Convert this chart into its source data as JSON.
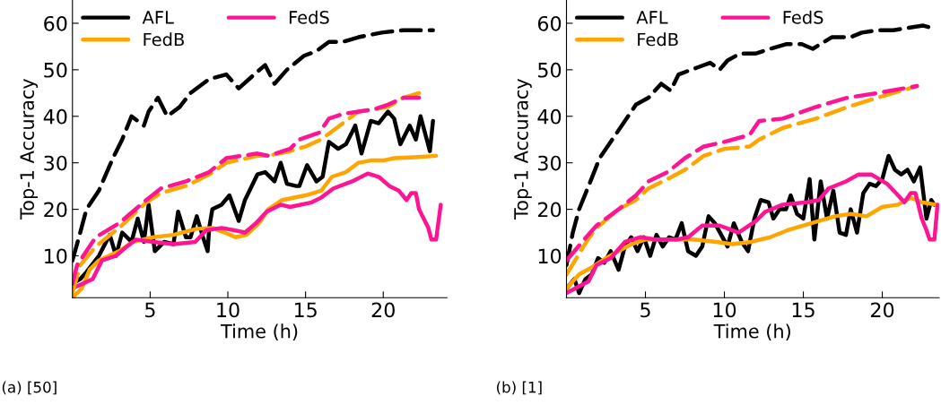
{
  "chart_data": [
    {
      "type": "line",
      "xlabel": "Time (h)",
      "ylabel": "Top-1 Accuracy",
      "xlim": [
        0,
        24.1
      ],
      "ylim": [
        1,
        65
      ],
      "xticks": [
        5,
        10,
        15,
        20
      ],
      "yticks": [
        10,
        20,
        30,
        40,
        50,
        60
      ],
      "grid": false,
      "legend": "top left",
      "marker": "none",
      "annotations": [
        "(a) [50]"
      ],
      "series": [
        {
          "name": "AFL",
          "color": "#000000",
          "line_style": "solid",
          "x": [
            0,
            0.5,
            0.9,
            1.7,
            2.4,
            2.8,
            3.2,
            3.8,
            4.2,
            4.6,
            4.9,
            5.3,
            5.9,
            6.5,
            6.8,
            7.3,
            7.6,
            8.0,
            8.4,
            8.7,
            8.8,
            9.0,
            9.6,
            10.1,
            10.7,
            11.1,
            11.9,
            12.4,
            13.0,
            13.4,
            13.8,
            14.4,
            14.6,
            15.1,
            15.7,
            16.1,
            16.5,
            17.1,
            17.6,
            18.2,
            18.6,
            19.2,
            19.7,
            20.3,
            20.7,
            21.1,
            21.7,
            22.1,
            22.4,
            22.8,
            23.0,
            23.2
          ],
          "values": [
            4,
            5,
            6.5,
            10,
            14.5,
            10,
            15,
            13,
            18,
            13,
            21,
            11,
            13,
            12.5,
            19.5,
            14,
            14,
            18.5,
            14,
            11,
            16,
            20,
            21,
            23,
            17.5,
            22,
            27.5,
            28,
            26,
            30,
            25.5,
            25,
            25,
            29.5,
            26,
            27,
            34.5,
            33,
            34,
            38,
            32,
            39,
            38.5,
            41,
            39.5,
            34,
            38,
            35,
            40,
            35,
            32.5,
            39
          ]
        },
        {
          "name": "FedB",
          "color": "#ffa500",
          "line_style": "solid",
          "x": [
            0,
            0.6,
            1.1,
            1.7,
            3.0,
            3.9,
            5.2,
            6.5,
            8.0,
            9.0,
            9.8,
            10.5,
            11.2,
            12.0,
            12.6,
            13.5,
            15.0,
            16.0,
            16.7,
            17.6,
            18.4,
            19.2,
            20.0,
            20.7,
            22.0,
            23.4
          ],
          "values": [
            1,
            3,
            7,
            9,
            11,
            13,
            14,
            14.5,
            15.8,
            16,
            15,
            14,
            14.5,
            17,
            20,
            22,
            23,
            24,
            27,
            28,
            30,
            30.5,
            30.5,
            31,
            31.2,
            31.5
          ]
        },
        {
          "name": "FedS",
          "color": "#ff1493",
          "line_style": "solid",
          "x": [
            0,
            1.3,
            1.9,
            2.8,
            3.5,
            4.1,
            5.2,
            6.5,
            7.9,
            8.6,
            9.6,
            10.4,
            11.1,
            11.8,
            12.5,
            13.4,
            14.0,
            15.4,
            16.0,
            16.8,
            18.0,
            19.0,
            19.7,
            20.4,
            21.0,
            21.5,
            21.8,
            22.1,
            22.3,
            22.9,
            23.1,
            23.4,
            23.7
          ],
          "values": [
            3,
            5,
            9,
            10,
            12,
            13.5,
            13,
            12.5,
            13,
            15.5,
            16,
            15.5,
            15,
            17,
            19.5,
            21,
            20.5,
            21.5,
            22.5,
            24.5,
            26,
            27.7,
            27,
            25,
            24,
            22,
            23.5,
            23.5,
            20,
            16,
            13.5,
            13.5,
            21
          ]
        },
        {
          "color": "#000000",
          "line_style": "dashed",
          "x": [
            0,
            0.5,
            0.9,
            1.7,
            2.6,
            3.2,
            3.8,
            4.6,
            4.9,
            5.5,
            6.1,
            6.9,
            7.6,
            8.8,
            9.9,
            10.7,
            11.7,
            12.4,
            13.0,
            13.8,
            14.9,
            15.7,
            16.5,
            17.4,
            18.4,
            19.9,
            21.3,
            22.6,
            23.2
          ],
          "values": [
            9,
            15,
            20,
            24,
            31,
            35,
            40,
            38,
            41,
            44,
            40,
            42,
            45,
            48,
            49,
            46,
            49,
            51,
            47,
            50,
            53,
            54,
            56,
            56,
            57,
            58,
            58.5,
            58.5,
            58.5
          ]
        },
        {
          "color": "#ffa500",
          "line_style": "dashed",
          "x": [
            0,
            0.5,
            1.5,
            3.0,
            4.75,
            5.7,
            7.3,
            8.8,
            9.9,
            11.9,
            12.6,
            14.0,
            15.0,
            16.0,
            17.4,
            18.4,
            20.3,
            21.3,
            22.3
          ],
          "values": [
            2,
            8,
            12,
            16,
            21.5,
            23.5,
            25,
            27.5,
            30,
            31.5,
            31.5,
            32.5,
            33.5,
            35,
            38.5,
            41,
            42,
            44,
            45
          ]
        },
        {
          "color": "#ff1493",
          "line_style": "dashed",
          "x": [
            0,
            0.3,
            1.5,
            3.0,
            4.75,
            5.7,
            7.3,
            8.8,
            9.9,
            11.9,
            12.6,
            14.0,
            14.6,
            15.9,
            16.5,
            17.4,
            19.4,
            20.3,
            21.3,
            22.3
          ],
          "values": [
            4,
            8,
            14,
            17,
            22,
            24.5,
            26,
            28,
            31,
            32,
            31.5,
            33,
            35,
            36.5,
            39.5,
            40.5,
            41.5,
            42.5,
            44,
            44
          ]
        }
      ]
    },
    {
      "type": "line",
      "xlabel": "Time (h)",
      "ylabel": "Top-1 Accuracy",
      "xlim": [
        0,
        23.6
      ],
      "ylim": [
        1,
        65
      ],
      "xticks": [
        5,
        10,
        15,
        20
      ],
      "yticks": [
        10,
        20,
        30,
        40,
        50,
        60
      ],
      "grid": false,
      "legend": "top left",
      "marker": "none",
      "annotations": [
        "(b) [1]"
      ],
      "series": [
        {
          "name": "AFL",
          "color": "#000000",
          "line_style": "solid",
          "x": [
            0,
            0.5,
            0.8,
            1.2,
            1.6,
            2.0,
            2.4,
            2.8,
            3.3,
            3.7,
            4.1,
            4.5,
            4.9,
            5.3,
            5.7,
            6.1,
            6.5,
            6.9,
            7.3,
            7.7,
            8.2,
            8.6,
            9.0,
            9.4,
            9.8,
            10.2,
            10.6,
            11.1,
            11.5,
            11.9,
            12.3,
            12.8,
            13.1,
            13.5,
            13.9,
            14.2,
            14.6,
            15.0,
            15.4,
            15.7,
            16.1,
            16.5,
            16.9,
            17.3,
            17.7,
            18.0,
            18.4,
            18.8,
            19.2,
            19.6,
            20.0,
            20.4,
            20.8,
            21.2,
            21.6,
            22.0,
            22.4,
            22.8,
            23.1,
            23.3
          ],
          "values": [
            3,
            5,
            2,
            5,
            6,
            9.5,
            8.5,
            11,
            7,
            12,
            14,
            11,
            14,
            10,
            14.5,
            12,
            14,
            13.5,
            17,
            11,
            10,
            12,
            18.5,
            17,
            14.5,
            12,
            17,
            13,
            11,
            18,
            22,
            21.5,
            18,
            20,
            20,
            23,
            19,
            18,
            26.5,
            13.5,
            26,
            18,
            24,
            15,
            14.5,
            20,
            15,
            23.5,
            25.5,
            25,
            26.5,
            31.5,
            28.5,
            27.5,
            28.5,
            26,
            29,
            18,
            22,
            21
          ]
        },
        {
          "name": "FedB",
          "color": "#ffa500",
          "line_style": "solid",
          "x": [
            0,
            0.8,
            1.6,
            2.5,
            3.3,
            4.1,
            5.0,
            6.5,
            8.0,
            9.5,
            10.5,
            11.7,
            12.9,
            14.0,
            15.5,
            17.0,
            18.0,
            19.0,
            20.0,
            21.0,
            21.8,
            22.5,
            23.4
          ],
          "values": [
            3,
            6,
            7.5,
            9.5,
            11,
            12.5,
            13.5,
            13.5,
            13.5,
            13,
            12.5,
            13,
            14,
            15.5,
            17,
            18.5,
            19,
            18.5,
            20.5,
            21,
            22.5,
            21.5,
            21
          ]
        },
        {
          "name": "FedS",
          "color": "#ff1493",
          "line_style": "solid",
          "x": [
            0,
            1.4,
            1.9,
            2.8,
            3.7,
            4.7,
            5.7,
            7.0,
            7.7,
            8.6,
            9.7,
            10.9,
            12.0,
            12.6,
            13.7,
            15.2,
            16.0,
            16.6,
            17.7,
            18.5,
            19.3,
            20.3,
            21.0,
            21.4,
            21.8,
            22.1,
            22.5,
            22.8,
            23.0,
            23.3,
            23.5
          ],
          "values": [
            2,
            4.5,
            8,
            9.5,
            13,
            14,
            13.5,
            13.5,
            14,
            16.5,
            16.5,
            15,
            17.5,
            19.5,
            21,
            21.5,
            22,
            24.5,
            26,
            27.5,
            27.5,
            25.5,
            23,
            21.5,
            23.5,
            23.5,
            18,
            15.5,
            13.5,
            13.5,
            21
          ]
        },
        {
          "color": "#000000",
          "line_style": "dashed",
          "x": [
            0,
            0.4,
            0.8,
            1.4,
            2.1,
            2.9,
            3.7,
            4.4,
            5.2,
            6.0,
            6.6,
            7.1,
            8.3,
            9.1,
            9.7,
            10.2,
            11.0,
            12.0,
            12.9,
            13.9,
            14.9,
            15.6,
            16.8,
            18.0,
            18.7,
            19.7,
            20.7,
            21.6,
            22.6,
            23.1
          ],
          "values": [
            8,
            15,
            20,
            25,
            31,
            35,
            39,
            42.5,
            44,
            47,
            45.5,
            49,
            50.5,
            51.5,
            50,
            52,
            53.5,
            53.5,
            54.5,
            55.5,
            55.5,
            54.5,
            57,
            57,
            58,
            58.5,
            58.5,
            59,
            59.5,
            59
          ]
        },
        {
          "color": "#ffa500",
          "line_style": "dashed",
          "x": [
            0,
            1.35,
            1.9,
            3.3,
            4.4,
            5.2,
            6.4,
            7.5,
            8.7,
            10.0,
            11.6,
            12.2,
            13.7,
            15.8,
            17.8,
            19.7,
            22.2
          ],
          "values": [
            6,
            13.5,
            16,
            20,
            22,
            24.5,
            26.5,
            28.5,
            31.5,
            33,
            33.5,
            35,
            37.5,
            39.5,
            42,
            44,
            46.5
          ]
        },
        {
          "color": "#ff1493",
          "line_style": "dashed",
          "x": [
            0,
            1.35,
            1.9,
            3.3,
            4.4,
            5.2,
            6.4,
            7.5,
            8.7,
            10.0,
            11.6,
            12.2,
            13.7,
            15.8,
            17.8,
            19.7,
            22.2
          ],
          "values": [
            9,
            14.4,
            16.5,
            20,
            23,
            26,
            28,
            31,
            33.5,
            34.5,
            36,
            39,
            39.5,
            42,
            44,
            45,
            46.5
          ]
        }
      ]
    }
  ]
}
